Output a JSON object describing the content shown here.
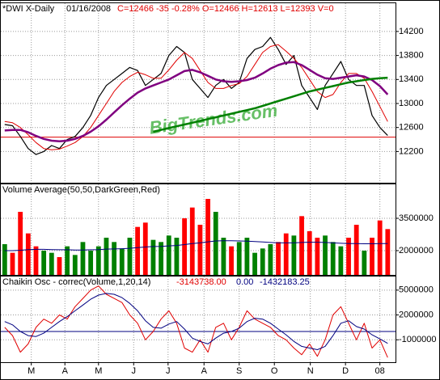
{
  "chart_data": [
    {
      "type": "line",
      "title": "*DWI X-Daily",
      "date": "01/16/2008",
      "quote": "C=12466 -35 -0.28% O=12466 H=12613 L=12393 V=0",
      "watermark": "BigTrends.com",
      "x": [
        0,
        1,
        2,
        3,
        4,
        5,
        6,
        7,
        8,
        9,
        10,
        11,
        12,
        13,
        14,
        15,
        16,
        17,
        18,
        19,
        20,
        21,
        22,
        23,
        24,
        25,
        26,
        27,
        28,
        29,
        30,
        31,
        32,
        33,
        34,
        35,
        36,
        37,
        38,
        39,
        40,
        41,
        42,
        43,
        44,
        45,
        46,
        47,
        48,
        49
      ],
      "xlim": [
        -0.5,
        50
      ],
      "ylim": [
        11680,
        14670
      ],
      "yticks": [
        12200,
        12600,
        13000,
        13400,
        13800,
        14200
      ],
      "grid": true,
      "reference_line": {
        "value": 12440,
        "color": "#e00000"
      },
      "series": [
        {
          "color": "#000000",
          "width": 1.2,
          "values": [
            12650,
            12630,
            12450,
            12250,
            12150,
            12200,
            12300,
            12250,
            12400,
            12450,
            12600,
            12800,
            13100,
            13300,
            13400,
            13500,
            13600,
            13550,
            13300,
            13400,
            13500,
            13800,
            13950,
            13850,
            13400,
            13250,
            13100,
            13300,
            13400,
            13250,
            13350,
            13750,
            13900,
            13950,
            14100,
            13900,
            13650,
            13800,
            13300,
            13100,
            12900,
            13300,
            13500,
            13700,
            13400,
            13300,
            13300,
            12800,
            12600,
            12466
          ]
        },
        {
          "color": "#e00000",
          "width": 1,
          "values": [
            12700,
            12680,
            12600,
            12480,
            12350,
            12250,
            12230,
            12240,
            12290,
            12350,
            12450,
            12600,
            12800,
            13000,
            13200,
            13350,
            13450,
            13520,
            13480,
            13420,
            13420,
            13560,
            13720,
            13850,
            13750,
            13550,
            13350,
            13250,
            13250,
            13300,
            13330,
            13450,
            13650,
            13850,
            13950,
            13980,
            13870,
            13750,
            13600,
            13400,
            13200,
            13100,
            13150,
            13350,
            13500,
            13500,
            13420,
            13200,
            12950,
            12700
          ]
        },
        {
          "color": "#800080",
          "width": 2.5,
          "values": [
            12550,
            12560,
            12560,
            12520,
            12460,
            12410,
            12380,
            12370,
            12380,
            12410,
            12460,
            12530,
            12620,
            12730,
            12850,
            12970,
            13080,
            13180,
            13250,
            13300,
            13350,
            13400,
            13470,
            13540,
            13560,
            13520,
            13460,
            13400,
            13370,
            13360,
            13370,
            13390,
            13430,
            13500,
            13580,
            13640,
            13680,
            13690,
            13640,
            13560,
            13480,
            13420,
            13410,
            13430,
            13450,
            13470,
            13450,
            13390,
            13290,
            13150
          ]
        },
        {
          "color": "#008000",
          "width": 2.5,
          "values": [
            null,
            null,
            null,
            null,
            null,
            null,
            null,
            null,
            null,
            null,
            null,
            null,
            null,
            null,
            null,
            null,
            null,
            null,
            null,
            12530,
            12560,
            12590,
            12620,
            12650,
            12680,
            12710,
            12740,
            12770,
            12800,
            12830,
            12860,
            12890,
            12920,
            12960,
            13000,
            13040,
            13080,
            13120,
            13160,
            13200,
            13230,
            13260,
            13290,
            13320,
            13350,
            13370,
            13390,
            13410,
            13420,
            13430
          ]
        }
      ]
    },
    {
      "type": "bar",
      "title": "Volume Average(50,50,DarkGreen,Red)",
      "x": [
        0,
        1,
        2,
        3,
        4,
        5,
        6,
        7,
        8,
        9,
        10,
        11,
        12,
        13,
        14,
        15,
        16,
        17,
        18,
        19,
        20,
        21,
        22,
        23,
        24,
        25,
        26,
        27,
        28,
        29,
        30,
        31,
        32,
        33,
        34,
        35,
        36,
        37,
        38,
        39,
        40,
        41,
        42,
        43,
        44,
        45,
        46,
        47,
        48,
        49
      ],
      "xlim": [
        -0.5,
        50
      ],
      "ylim": [
        875000,
        5075000
      ],
      "yticks": [
        2000000,
        3500000
      ],
      "grid": true,
      "values": [
        2300000,
        1900000,
        3800000,
        2800000,
        2200000,
        2000000,
        1900000,
        1700000,
        2200000,
        1800000,
        2400000,
        2000000,
        2200000,
        2600000,
        2400000,
        2100000,
        2600000,
        3100000,
        3300000,
        2500000,
        2400000,
        2700000,
        2600000,
        3500000,
        4000000,
        3200000,
        4400000,
        3800000,
        2600000,
        2200000,
        2400000,
        2600000,
        1900000,
        2100000,
        2300000,
        2400000,
        2800000,
        2700000,
        3600000,
        2900000,
        2600000,
        2700000,
        2400000,
        2200000,
        2600000,
        3200000,
        2000000,
        2600000,
        3400000,
        3000000
      ],
      "colors": [
        "#008000",
        "#ff0000",
        "#ff0000",
        "#ff0000",
        "#ff0000",
        "#008000",
        "#008000",
        "#ff0000",
        "#008000",
        "#008000",
        "#008000",
        "#008000",
        "#008000",
        "#008000",
        "#008000",
        "#008000",
        "#008000",
        "#ff0000",
        "#ff0000",
        "#008000",
        "#008000",
        "#008000",
        "#008000",
        "#ff0000",
        "#ff0000",
        "#ff0000",
        "#ff0000",
        "#008000",
        "#008000",
        "#ff0000",
        "#008000",
        "#008000",
        "#008000",
        "#008000",
        "#008000",
        "#ff0000",
        "#ff0000",
        "#008000",
        "#ff0000",
        "#ff0000",
        "#ff0000",
        "#008000",
        "#008000",
        "#008000",
        "#ff0000",
        "#ff0000",
        "#008000",
        "#ff0000",
        "#ff0000",
        "#ff0000"
      ],
      "average": {
        "color": "#000080",
        "values": [
          2000000,
          2000000,
          2020000,
          2050000,
          2060000,
          2060000,
          2050000,
          2040000,
          2040000,
          2030000,
          2030000,
          2040000,
          2050000,
          2070000,
          2080000,
          2090000,
          2110000,
          2140000,
          2170000,
          2190000,
          2200000,
          2220000,
          2240000,
          2280000,
          2330000,
          2360000,
          2410000,
          2450000,
          2460000,
          2460000,
          2450000,
          2440000,
          2420000,
          2400000,
          2380000,
          2360000,
          2360000,
          2360000,
          2380000,
          2390000,
          2390000,
          2380000,
          2360000,
          2340000,
          2330000,
          2330000,
          2320000,
          2320000,
          2330000,
          2330000
        ]
      }
    },
    {
      "type": "line",
      "title": "Chaikin Osc - correc(Volume,1,20,14)",
      "readouts": [
        "-3143738.00",
        "0.00",
        "-1432183.25"
      ],
      "x": [
        0,
        1,
        2,
        3,
        4,
        5,
        6,
        7,
        8,
        9,
        10,
        11,
        12,
        13,
        14,
        15,
        16,
        17,
        18,
        19,
        20,
        21,
        22,
        23,
        24,
        25,
        26,
        27,
        28,
        29,
        30,
        31,
        32,
        33,
        34,
        35,
        36,
        37,
        38,
        39,
        40,
        41,
        42,
        43,
        44,
        45,
        46,
        47,
        48,
        49
      ],
      "xlim": [
        -0.5,
        50
      ],
      "ylim": [
        -3710000,
        6645000
      ],
      "yticks": [
        -1000000,
        2000000,
        5000000
      ],
      "grid": true,
      "xticks": [
        {
          "value": 3.4,
          "label": "M"
        },
        {
          "value": 7.7,
          "label": "A"
        },
        {
          "value": 12.0,
          "label": "M"
        },
        {
          "value": 16.5,
          "label": "J"
        },
        {
          "value": 20.9,
          "label": "J"
        },
        {
          "value": 25.5,
          "label": "A"
        },
        {
          "value": 30.0,
          "label": "S"
        },
        {
          "value": 34.5,
          "label": "O"
        },
        {
          "value": 39.1,
          "label": "N"
        },
        {
          "value": 43.6,
          "label": "D"
        },
        {
          "value": 48.0,
          "label": "08"
        }
      ],
      "reference_line": {
        "value": 0,
        "color": "#000080"
      },
      "series": [
        {
          "color": "#e00000",
          "width": 1,
          "values": [
            500000,
            -500000,
            -2500000,
            -1500000,
            500000,
            1500000,
            1000000,
            2000000,
            1500000,
            3000000,
            4000000,
            5000000,
            5500000,
            4500000,
            4000000,
            3500000,
            2000000,
            1000000,
            -1000000,
            0,
            1500000,
            2500000,
            1000000,
            -2000000,
            -2500000,
            -1000000,
            -2500000,
            500000,
            1000000,
            -1000000,
            500000,
            2500000,
            1500000,
            1000000,
            500000,
            -500000,
            -1000000,
            -2000000,
            -2800000,
            -1500000,
            -3000000,
            -1000000,
            2000000,
            3000000,
            1000000,
            -1000000,
            1000000,
            -2000000,
            -1000000,
            -3143738
          ]
        },
        {
          "color": "#000080",
          "width": 1,
          "values": [
            1200000,
            800000,
            0,
            -500000,
            -600000,
            -200000,
            500000,
            1200000,
            1800000,
            2500000,
            3200000,
            3900000,
            4400000,
            4600000,
            4500000,
            4100000,
            3400000,
            2500000,
            1300000,
            500000,
            400000,
            900000,
            1200000,
            300000,
            -800000,
            -1200000,
            -1500000,
            -800000,
            -200000,
            0,
            400000,
            1200000,
            1600000,
            1500000,
            1000000,
            300000,
            -400000,
            -1200000,
            -1800000,
            -2000000,
            -2200000,
            -1800000,
            -500000,
            1000000,
            1300000,
            600000,
            300000,
            -400000,
            -900000,
            -1432183
          ]
        }
      ]
    }
  ]
}
